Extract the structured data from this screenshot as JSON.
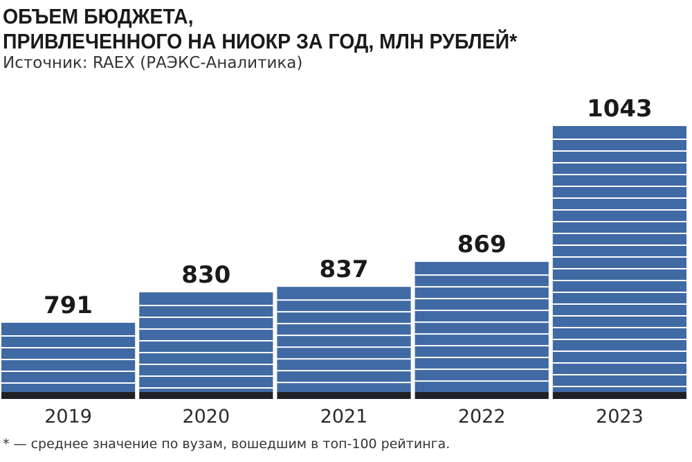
{
  "header": {
    "title_line1": "ОБЪЕМ БЮДЖЕТА,",
    "title_line2": "ПРИВЛЕЧЕННОГО НА НИОКР ЗА ГОД, МЛН РУБЛЕЙ*",
    "source": "Источник: RAEX (РАЭКС-Аналитика)"
  },
  "footnote": "* — среднее значение по вузам, вошедшим в топ-100 рейтинга.",
  "colors": {
    "bar": "#3f6aa4",
    "stripe": "#ffffff",
    "base": "#1f2025",
    "text": "#1a1a1a"
  },
  "chart_data": {
    "type": "bar",
    "title": "ОБЪЕМ БЮДЖЕТА, ПРИВЛЕЧЕННОГО НА НИОКР ЗА ГОД, МЛН РУБЛЕЙ*",
    "categories": [
      "2019",
      "2020",
      "2021",
      "2022",
      "2023"
    ],
    "values": [
      791,
      830,
      837,
      869,
      1043
    ],
    "value_labels": [
      "791",
      "830",
      "837",
      "869",
      "1043"
    ],
    "xlabel": "",
    "ylabel": "",
    "grid": false,
    "y_axis_shown": false
  }
}
